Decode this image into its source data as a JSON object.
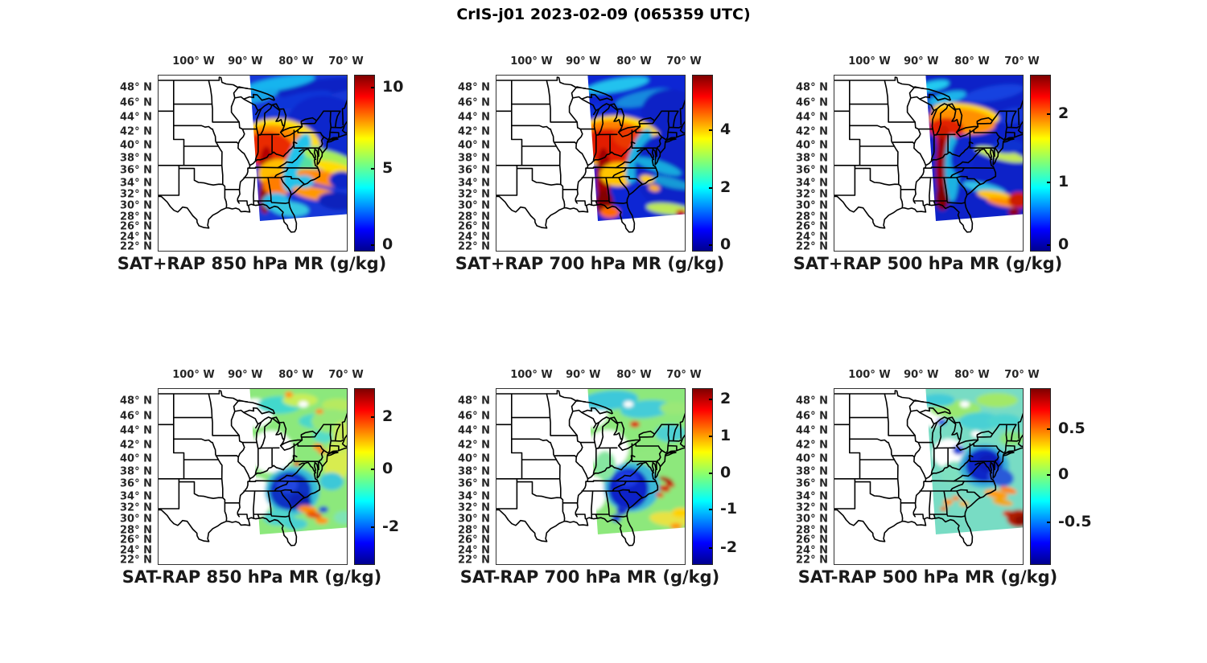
{
  "figure": {
    "title": "CrIS-j01 2023-02-09 (065359 UTC)",
    "background": "#ffffff"
  },
  "axes": {
    "lon_ticks": [
      {
        "text": "100° W",
        "f": 0.19
      },
      {
        "text": "90° W",
        "f": 0.465
      },
      {
        "text": "80° W",
        "f": 0.735
      },
      {
        "text": "70° W",
        "f": 1.0
      }
    ],
    "lat_ticks": [
      {
        "text": "48° N",
        "f": 0.073
      },
      {
        "text": "46° N",
        "f": 0.161
      },
      {
        "text": "44° N",
        "f": 0.245
      },
      {
        "text": "42° N",
        "f": 0.326
      },
      {
        "text": "40° N",
        "f": 0.404
      },
      {
        "text": "38° N",
        "f": 0.477
      },
      {
        "text": "36° N",
        "f": 0.548
      },
      {
        "text": "34° N",
        "f": 0.617
      },
      {
        "text": "32° N",
        "f": 0.683
      },
      {
        "text": "30° N",
        "f": 0.748
      },
      {
        "text": "28° N",
        "f": 0.81
      },
      {
        "text": "26° N",
        "f": 0.869
      },
      {
        "text": "24° N",
        "f": 0.927
      },
      {
        "text": "22° N",
        "f": 0.982
      }
    ]
  },
  "colors": {
    "jet_stops": [
      "#00008f",
      "#0000ff",
      "#00ffff",
      "#7dff7a",
      "#ffff00",
      "#ff0000",
      "#7f0000"
    ],
    "state_lines": "#000000",
    "axis_text": "#262626",
    "title_text": "#1a1a1a"
  },
  "panels": [
    {
      "title": "SAT+RAP 850 hPa MR (g/kg)",
      "colorbar_ticks": [
        {
          "label": "10",
          "f": 0.93
        },
        {
          "label": "5",
          "f": 0.47
        },
        {
          "label": "0",
          "f": 0.03
        }
      ]
    },
    {
      "title": "SAT+RAP 700 hPa MR (g/kg)",
      "colorbar_ticks": [
        {
          "label": "4",
          "f": 0.69
        },
        {
          "label": "2",
          "f": 0.36
        },
        {
          "label": "0",
          "f": 0.03
        }
      ]
    },
    {
      "title": "SAT+RAP 500 hPa MR (g/kg)",
      "colorbar_ticks": [
        {
          "label": "2",
          "f": 0.78
        },
        {
          "label": "1",
          "f": 0.39
        },
        {
          "label": "0",
          "f": 0.03
        }
      ]
    },
    {
      "title": "SAT-RAP 850 hPa MR (g/kg)",
      "colorbar_ticks": [
        {
          "label": "2",
          "f": 0.84
        },
        {
          "label": "0",
          "f": 0.54
        },
        {
          "label": "-2",
          "f": 0.21
        }
      ]
    },
    {
      "title": "SAT-RAP 700 hPa MR (g/kg)",
      "colorbar_ticks": [
        {
          "label": "2",
          "f": 0.94
        },
        {
          "label": "1",
          "f": 0.73
        },
        {
          "label": "0",
          "f": 0.52
        },
        {
          "label": "-1",
          "f": 0.31
        },
        {
          "label": "-2",
          "f": 0.09
        }
      ]
    },
    {
      "title": "SAT-RAP 500 hPa MR (g/kg)",
      "colorbar_ticks": [
        {
          "label": "0.5",
          "f": 0.77
        },
        {
          "label": "0",
          "f": 0.51
        },
        {
          "label": "-0.5",
          "f": 0.24
        }
      ]
    }
  ],
  "chart_data": {
    "type": "heatmap",
    "layout": "2 rows x 3 columns of geographic map panels (eastern United States), jet colormap satellite swath data east of ~91W",
    "figure_title": "CrIS-j01 2023-02-09 (065359 UTC)",
    "lon_ticks_degW": [
      100,
      90,
      80,
      70
    ],
    "lat_ticks_degN": [
      48,
      46,
      44,
      42,
      40,
      38,
      36,
      34,
      32,
      30,
      28,
      26,
      24,
      22
    ],
    "map_extent": {
      "lon": [
        -107,
        -70
      ],
      "lat": [
        22,
        50
      ]
    },
    "colormap": "jet",
    "legend_position": "right vertical colorbar per panel",
    "grid": false,
    "panels": [
      {
        "title": "SAT+RAP 850 hPa MR (g/kg)",
        "colorbar_ticks": [
          0,
          5,
          10
        ],
        "value_range": [
          0,
          10.6
        ],
        "summary": "Blue (1-3 g/kg) over Great Lakes/Northeast; red-orange plume 8-10 g/kg over mid-Mississippi and Ohio valleys; dark-red streak ~10 along 91W from 38N to 30N; orange bands 6-8 offshore Southeast with dark-blue patches near 70W."
      },
      {
        "title": "SAT+RAP 700 hPa MR (g/kg)",
        "colorbar_ticks": [
          0,
          2,
          4
        ],
        "value_range": [
          0,
          5.7
        ],
        "summary": "Large red blob 4-5 g/kg over Midwest/Ohio valley; dark-red ~5.5 streak along 91W down to 30N; dark blue <1 over Southeast and Atlantic with cyan diagonal streaks."
      },
      {
        "title": "SAT+RAP 500 hPa MR (g/kg)",
        "colorbar_ticks": [
          0,
          1,
          2
        ],
        "value_range": [
          0,
          2.55
        ],
        "summary": "Mostly dark blue <0.5; orange-red arc 2-2.5 over lower Michigan/Ohio/western NY; narrow dark-red streak ~2.5 along 90W from 43N to 30N; speckled yellow-orange arcs offshore Southeast; red blob near 70W 29N."
      },
      {
        "title": "SAT-RAP 850 hPa MR (g/kg)",
        "colorbar_ticks": [
          -2,
          0,
          2
        ],
        "value_range": [
          -3.5,
          3.0
        ],
        "summary": "Differences mostly near 0 (green); dark-blue negative blob -2 to -3 over Carolinas/Georgia coast; orange spots +1 to +2 near New England coast and ~29N offshore; data gaps (white) over Midwest."
      },
      {
        "title": "SAT-RAP 700 hPa MR (g/kg)",
        "colorbar_ticks": [
          -2,
          -1,
          0,
          1,
          2
        ],
        "value_range": [
          -2.45,
          2.3
        ],
        "summary": "Mostly near 0 (green/cyan); dark-blue blob ~-2 over Carolinas/Georgia; red speckles +1.5 to +2 offshore ~33N and one near Lake Ontario; yellow patch bottom-right."
      },
      {
        "title": "SAT-RAP 500 hPa MR (g/kg)",
        "colorbar_ticks": [
          -0.5,
          0,
          0.5
        ],
        "value_range": [
          -0.95,
          0.93
        ],
        "summary": "Mostly cyan-green near 0; dark-blue negative region ~-0.9 over mid-Atlantic coast; orange-red speckles +0.5 over Gulf states and offshore; dark-red blob ~+0.9 near 68W 27N."
      }
    ]
  }
}
